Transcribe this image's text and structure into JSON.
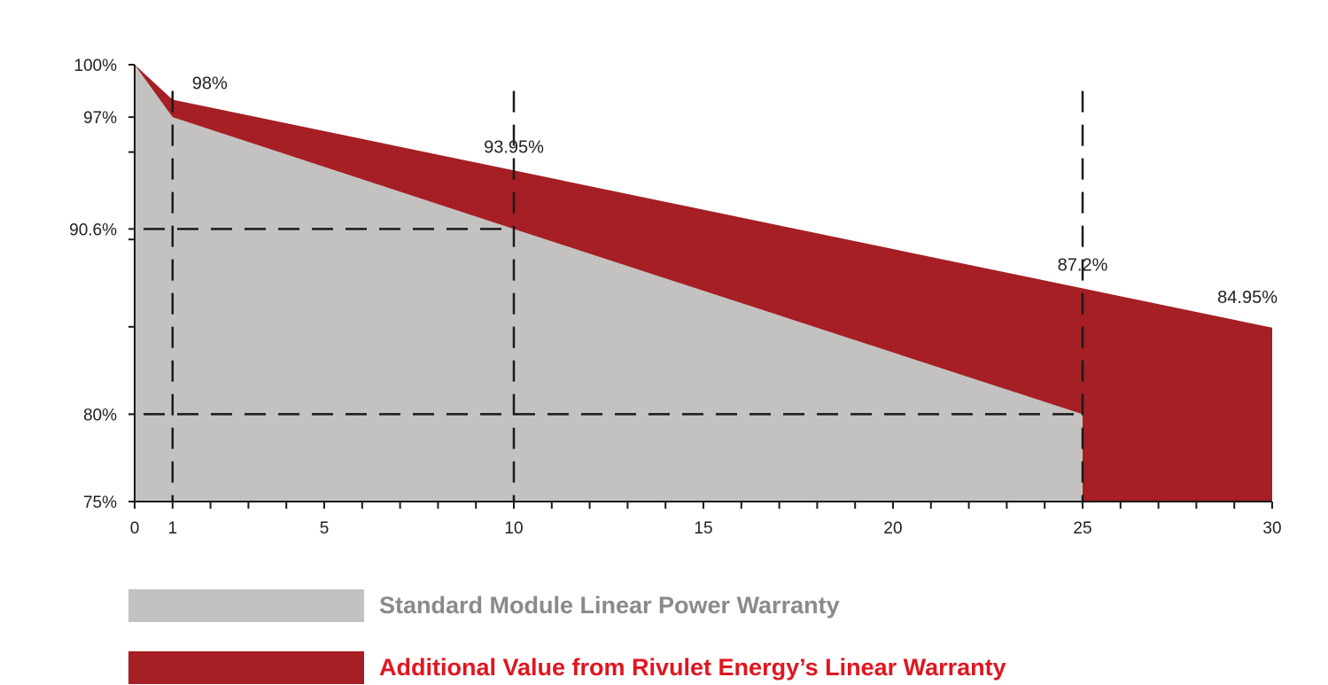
{
  "chart_data": {
    "type": "area",
    "x_ticks": [
      0,
      1,
      5,
      10,
      15,
      20,
      25,
      30
    ],
    "x_tick_labels": [
      "0",
      "1",
      "5",
      "10",
      "15",
      "20",
      "25",
      "30"
    ],
    "y_ticks": [
      75,
      80,
      90.6,
      97,
      100
    ],
    "y_tick_labels": [
      "75%",
      "80%",
      "90.6%",
      "97%",
      "100%"
    ],
    "xlim": [
      0,
      30
    ],
    "ylim": [
      75,
      100
    ],
    "series": [
      {
        "name": "Standard Module Linear Power Warranty",
        "color": "#c4c2c1",
        "x": [
          0,
          1,
          10,
          25
        ],
        "y": [
          100,
          97,
          90.6,
          80
        ]
      },
      {
        "name": "Additional Value from Rivulet Energy’s Linear Warranty",
        "color": "#a51f24",
        "x": [
          0,
          1,
          10,
          25,
          30
        ],
        "y": [
          100,
          98,
          93.95,
          87.2,
          84.95
        ]
      }
    ],
    "data_labels": [
      {
        "x": 1,
        "y": 98,
        "text": "98%"
      },
      {
        "x": 10,
        "y": 93.95,
        "text": "93.95%"
      },
      {
        "x": 25,
        "y": 87.2,
        "text": "87.2%"
      },
      {
        "x": 30,
        "y": 84.95,
        "text": "84.95%"
      }
    ],
    "reference_lines": {
      "vertical_x": [
        1,
        10,
        25
      ],
      "horizontal_y": [
        90.6,
        80
      ]
    }
  },
  "legend": {
    "standard_label": "Standard Module Linear Power Warranty",
    "standard_color": "#c4c2c1",
    "standard_text_color": "#8a8a8a",
    "additional_label": "Additional Value from Rivulet Energy’s Linear Warranty",
    "additional_color": "#a51f24",
    "additional_text_color": "#e0161f"
  }
}
